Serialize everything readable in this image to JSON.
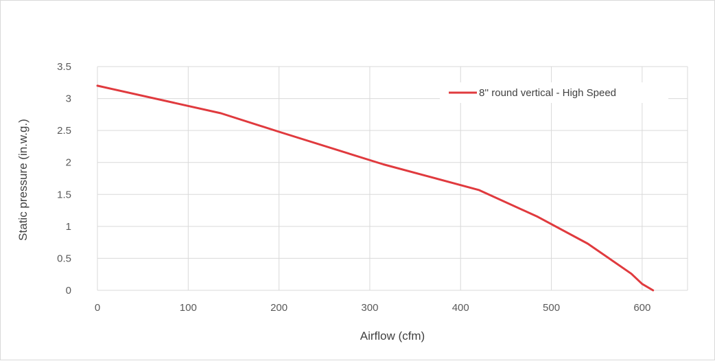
{
  "chart_data": {
    "type": "line",
    "title": "",
    "xlabel": "Airflow (cfm)",
    "ylabel": "Static pressure (in.w.g.)",
    "xlim": [
      0,
      650
    ],
    "ylim": [
      0,
      3.5
    ],
    "x_ticks": [
      0,
      100,
      200,
      300,
      400,
      500,
      600
    ],
    "y_ticks": [
      0,
      0.5,
      1,
      1.5,
      2,
      2.5,
      3,
      3.5
    ],
    "x_tick_labels": [
      "0",
      "100",
      "200",
      "300",
      "400",
      "500",
      "600"
    ],
    "y_tick_labels": [
      "0",
      "0.5",
      "1",
      "1.5",
      "2",
      "2.5",
      "3",
      "3.5"
    ],
    "grid": true,
    "legend_position": "top-right",
    "series": [
      {
        "name": "8'' round vertical - High Speed",
        "color": "#e03a3e",
        "x": [
          0,
          136,
          200,
          315,
          420,
          485,
          540,
          588,
          600,
          612
        ],
        "y": [
          3.2,
          2.77,
          2.48,
          1.97,
          1.57,
          1.15,
          0.73,
          0.26,
          0.1,
          0
        ]
      }
    ]
  }
}
